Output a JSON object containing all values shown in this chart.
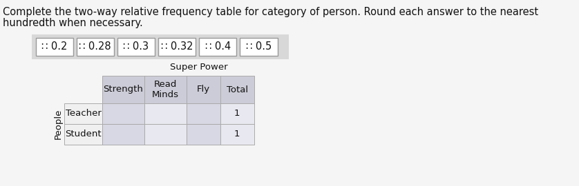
{
  "title_line1": "Complete the two-way relative frequency table for category of person. Round each answer to the nearest",
  "title_line2": "hundredth when necessary.",
  "drag_items": [
    "∷ 0.2",
    "∷ 0.28",
    "∷ 0.3",
    "∷ 0.32",
    "∷ 0.4",
    "∷ 0.5"
  ],
  "super_power_label": "Super Power",
  "col_headers": [
    "Strength",
    "Read\nMinds",
    "Fly",
    "Total"
  ],
  "row_header_label": "People",
  "row_labels": [
    "Teacher",
    "Student"
  ],
  "cell_values": [
    [
      "",
      "",
      "",
      "1"
    ],
    [
      "",
      "",
      "",
      "1"
    ]
  ],
  "page_bg": "#f5f5f5",
  "drag_area_bg": "#d8d8d8",
  "drag_box_bg": "#ffffff",
  "drag_box_border": "#999999",
  "table_header_bg": "#ccccd8",
  "table_cell_bg_dark": "#d8d8e4",
  "table_cell_bg_light": "#e8e8f0",
  "row_label_bg": "#f0f0f0",
  "title_fontsize": 10.5,
  "drag_fontsize": 10.5,
  "table_fontsize": 9.5,
  "text_color": "#111111"
}
